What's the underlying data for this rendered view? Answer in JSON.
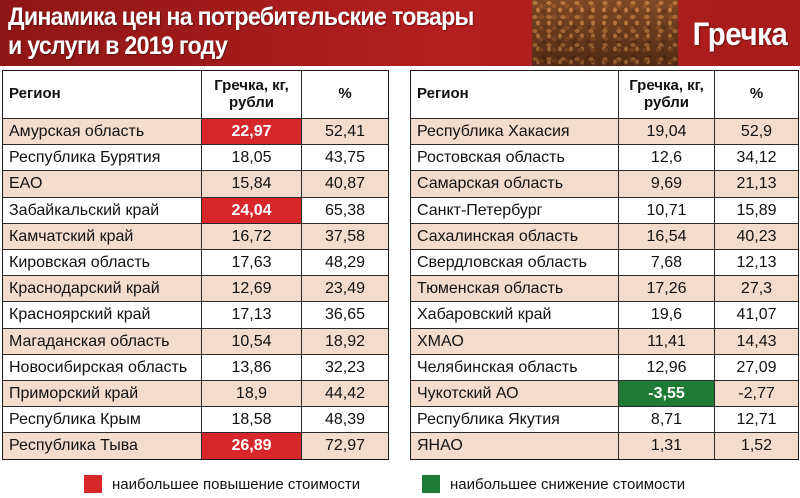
{
  "header": {
    "title": "Динамика цен на потребительские товары и услуги в 2019 году",
    "product": "Гречка"
  },
  "columns": {
    "region": "Регион",
    "price": "Гречка, кг, рубли",
    "percent": "%"
  },
  "left_table": [
    {
      "region": "Амурская область",
      "price": "22,97",
      "percent": "52,41",
      "highlight": "red"
    },
    {
      "region": "Республика Бурятия",
      "price": "18,05",
      "percent": "43,75",
      "highlight": ""
    },
    {
      "region": "ЕАО",
      "price": "15,84",
      "percent": "40,87",
      "highlight": ""
    },
    {
      "region": "Забайкальский край",
      "price": "24,04",
      "percent": "65,38",
      "highlight": "red"
    },
    {
      "region": "Камчатский край",
      "price": "16,72",
      "percent": "37,58",
      "highlight": ""
    },
    {
      "region": "Кировская область",
      "price": "17,63",
      "percent": "48,29",
      "highlight": ""
    },
    {
      "region": "Краснодарский край",
      "price": "12,69",
      "percent": "23,49",
      "highlight": ""
    },
    {
      "region": "Красноярский край",
      "price": "17,13",
      "percent": "36,65",
      "highlight": ""
    },
    {
      "region": "Магаданская область",
      "price": "10,54",
      "percent": "18,92",
      "highlight": ""
    },
    {
      "region": "Новосибирская область",
      "price": "13,86",
      "percent": "32,23",
      "highlight": ""
    },
    {
      "region": "Приморский край",
      "price": "18,9",
      "percent": "44,42",
      "highlight": ""
    },
    {
      "region": "Республика Крым",
      "price": "18,58",
      "percent": "48,39",
      "highlight": ""
    },
    {
      "region": "Республика Тыва",
      "price": "26,89",
      "percent": "72,97",
      "highlight": "red"
    }
  ],
  "right_table": [
    {
      "region": "Республика Хакасия",
      "price": "19,04",
      "percent": "52,9",
      "highlight": ""
    },
    {
      "region": "Ростовская область",
      "price": "12,6",
      "percent": "34,12",
      "highlight": ""
    },
    {
      "region": "Самарская область",
      "price": "9,69",
      "percent": "21,13",
      "highlight": ""
    },
    {
      "region": "Санкт-Петербург",
      "price": "10,71",
      "percent": "15,89",
      "highlight": ""
    },
    {
      "region": "Сахалинская область",
      "price": "16,54",
      "percent": "40,23",
      "highlight": ""
    },
    {
      "region": "Свердловская область",
      "price": "7,68",
      "percent": "12,13",
      "highlight": ""
    },
    {
      "region": "Тюменская область",
      "price": "17,26",
      "percent": "27,3",
      "highlight": ""
    },
    {
      "region": "Хабаровский край",
      "price": "19,6",
      "percent": "41,07",
      "highlight": ""
    },
    {
      "region": "ХМАО",
      "price": "11,41",
      "percent": "14,43",
      "highlight": ""
    },
    {
      "region": "Челябинская область",
      "price": "12,96",
      "percent": "27,09",
      "highlight": ""
    },
    {
      "region": "Чукотский АО",
      "price": "-3,55",
      "percent": "-2,77",
      "highlight": "green"
    },
    {
      "region": "Республика Якутия",
      "price": "8,71",
      "percent": "12,71",
      "highlight": ""
    },
    {
      "region": "ЯНАО",
      "price": "1,31",
      "percent": "1,52",
      "highlight": ""
    }
  ],
  "legend": {
    "increase": "наибольшее повышение стоимости",
    "decrease": "наибольшее снижение стоимости"
  },
  "colors": {
    "header_red": "#a81c1c",
    "row_alt": "#f4dccd",
    "highlight_red": "#d8272a",
    "highlight_green": "#1e7a34"
  }
}
